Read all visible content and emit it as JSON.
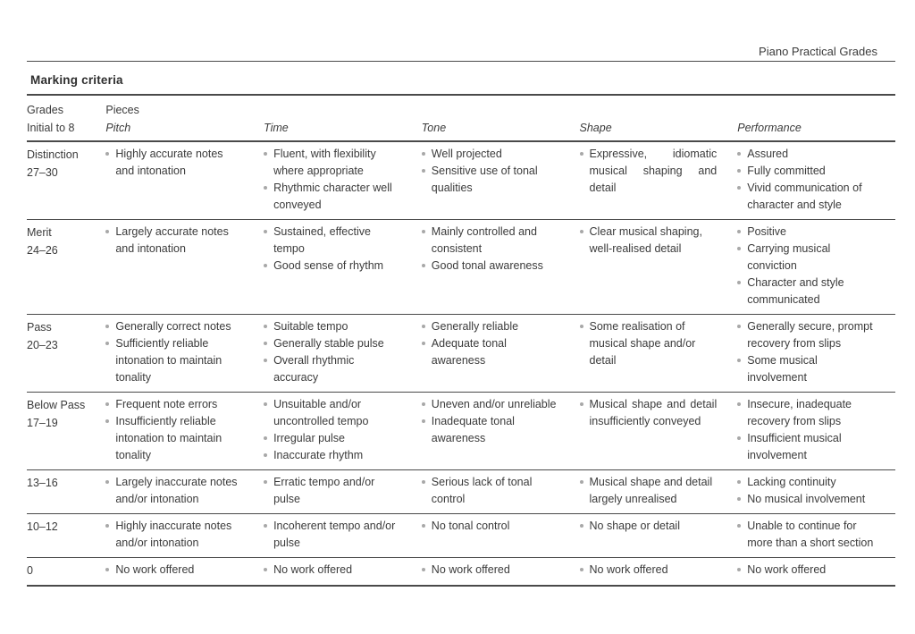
{
  "header": {
    "title": "Piano Practical Grades"
  },
  "section": {
    "title": "Marking criteria"
  },
  "colors": {
    "text": "#3b3b3b",
    "bullet": "#a8a8a8",
    "rule": "#4a4a4a"
  },
  "table": {
    "grades_header_line1": "Grades",
    "grades_header_line2": "Initial to 8",
    "pieces_header": "Pieces",
    "columns": [
      "Pitch",
      "Time",
      "Tone",
      "Shape",
      "Performance"
    ],
    "rows": [
      {
        "grade": [
          "Distinction",
          "27–30"
        ],
        "cells": {
          "pitch": [
            "Highly accurate notes and intonation"
          ],
          "time": [
            "Fluent, with flexibility where appropriate",
            "Rhythmic character well conveyed"
          ],
          "tone": [
            "Well projected",
            "Sensitive use of tonal qualities"
          ],
          "shape": [
            "Expressive, idiomatic musical shaping and detail"
          ],
          "performance": [
            "Assured",
            "Fully committed",
            "Vivid communication of character and style"
          ]
        }
      },
      {
        "grade": [
          "Merit",
          "24–26"
        ],
        "cells": {
          "pitch": [
            "Largely accurate notes and intonation"
          ],
          "time": [
            "Sustained, effective tempo",
            "Good sense of rhythm"
          ],
          "tone": [
            "Mainly controlled and consistent",
            "Good tonal awareness"
          ],
          "shape": [
            "Clear musical shaping, well-realised detail"
          ],
          "performance": [
            "Positive",
            "Carrying musical conviction",
            "Character and style communicated"
          ]
        }
      },
      {
        "grade": [
          "Pass",
          "20–23"
        ],
        "cells": {
          "pitch": [
            "Generally correct notes",
            "Sufficiently reliable intonation to maintain tonality"
          ],
          "time": [
            "Suitable tempo",
            "Generally stable pulse",
            "Overall rhythmic accuracy"
          ],
          "tone": [
            "Generally reliable",
            "Adequate tonal awareness"
          ],
          "shape": [
            "Some realisation of musical shape and/or detail"
          ],
          "performance": [
            "Generally secure, prompt recovery from slips",
            "Some musical involvement"
          ]
        }
      },
      {
        "grade": [
          "Below Pass",
          "17–19"
        ],
        "cells": {
          "pitch": [
            "Frequent note errors",
            "Insufficiently reliable intonation to maintain tonality"
          ],
          "time": [
            "Unsuitable and/or uncontrolled tempo",
            "Irregular pulse",
            "Inaccurate rhythm"
          ],
          "tone": [
            "Uneven and/or unreliable",
            "Inadequate tonal awareness"
          ],
          "shape": [
            "Musical shape and detail insufficiently conveyed"
          ],
          "performance": [
            "Insecure, inadequate recovery from slips",
            "Insufficient musical involvement"
          ]
        }
      },
      {
        "grade": [
          "13–16"
        ],
        "cells": {
          "pitch": [
            "Largely inaccurate notes and/or intonation"
          ],
          "time": [
            "Erratic tempo and/or pulse"
          ],
          "tone": [
            "Serious lack of tonal control"
          ],
          "shape": [
            "Musical shape and detail largely unrealised"
          ],
          "performance": [
            "Lacking continuity",
            "No musical involvement"
          ]
        }
      },
      {
        "grade": [
          "10–12"
        ],
        "cells": {
          "pitch": [
            "Highly inaccurate notes and/or intonation"
          ],
          "time": [
            "Incoherent tempo and/or pulse"
          ],
          "tone": [
            "No tonal control"
          ],
          "shape": [
            "No shape or detail"
          ],
          "performance": [
            "Unable to continue for more than a short section"
          ]
        }
      },
      {
        "grade": [
          "0"
        ],
        "cells": {
          "pitch": [
            "No work offered"
          ],
          "time": [
            "No work offered"
          ],
          "tone": [
            "No work offered"
          ],
          "shape": [
            "No work offered"
          ],
          "performance": [
            "No work offered"
          ]
        }
      }
    ]
  }
}
